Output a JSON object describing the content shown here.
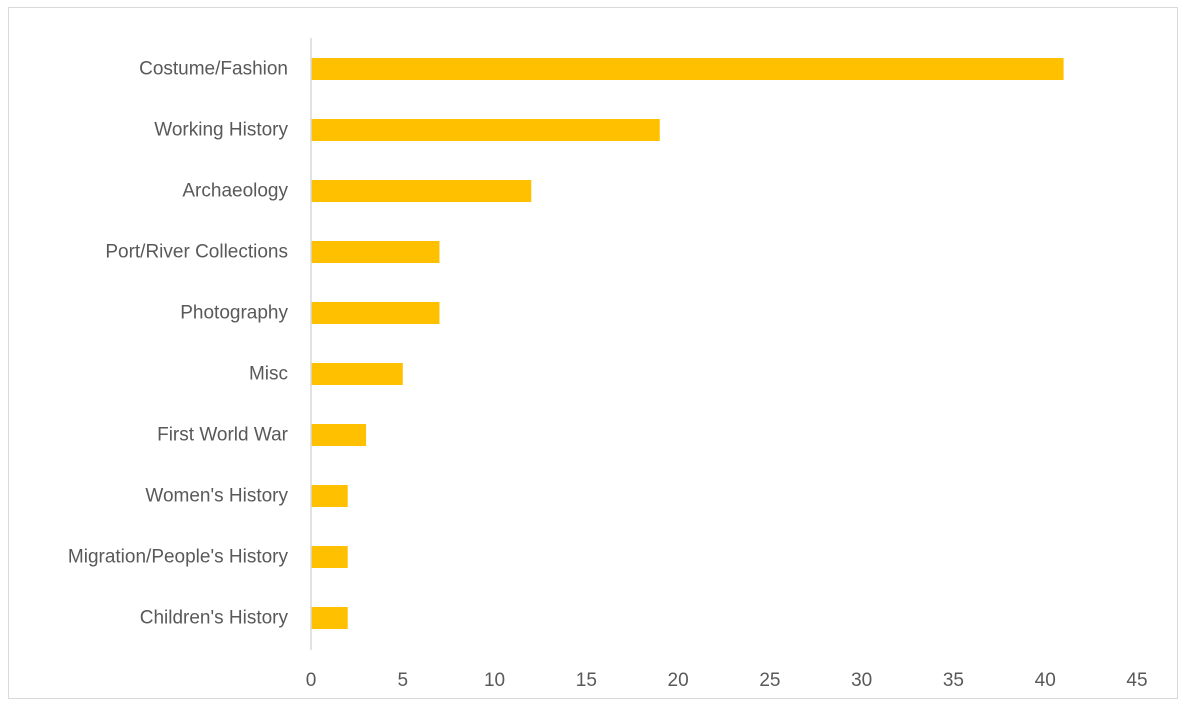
{
  "chart_data": {
    "type": "bar",
    "orientation": "horizontal",
    "categories": [
      "Costume/Fashion",
      "Working History",
      "Archaeology",
      "Port/River Collections",
      "Photography",
      "Misc",
      "First World War",
      "Women's History",
      "Migration/People's History",
      "Children's History"
    ],
    "values": [
      41,
      19,
      12,
      7,
      7,
      5,
      3,
      2,
      2,
      2
    ],
    "xlim": [
      0,
      45
    ],
    "x_ticks": [
      0,
      5,
      10,
      15,
      20,
      25,
      30,
      35,
      40,
      45
    ],
    "x_tick_labels": [
      "0",
      "5",
      "10",
      "15",
      "20",
      "25",
      "30",
      "35",
      "40",
      "45"
    ],
    "title": "",
    "xlabel": "",
    "ylabel": "",
    "grid": false,
    "legend": "none",
    "bar_color": "#FFC000",
    "axis_color": "#d9d9d9",
    "text_color": "#595959"
  }
}
